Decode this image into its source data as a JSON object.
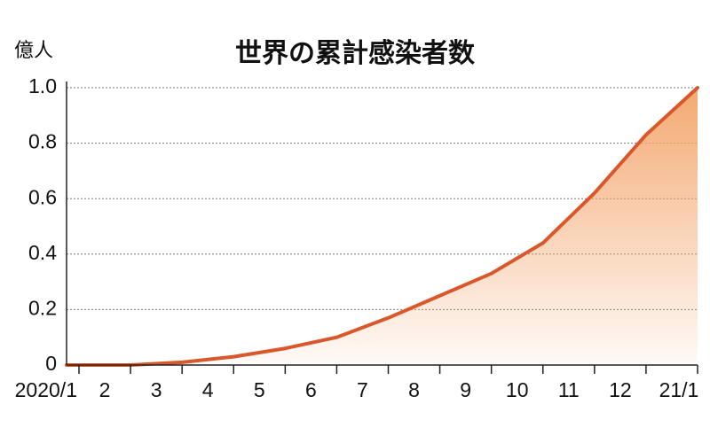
{
  "chart_data": {
    "type": "area",
    "title": "世界の累計感染者数",
    "y_unit": "億人",
    "categories": [
      "2020/1",
      "2",
      "3",
      "4",
      "5",
      "6",
      "7",
      "8",
      "9",
      "10",
      "11",
      "12",
      "21/1"
    ],
    "series": [
      {
        "name": "累計感染者数",
        "color": "#d9572b",
        "values": [
          0,
          0,
          0.01,
          0.03,
          0.06,
          0.1,
          0.17,
          0.25,
          0.33,
          0.44,
          0.62,
          0.83,
          1.0
        ]
      }
    ],
    "ylim": [
      0,
      1.0
    ],
    "yticks": [
      0,
      0.2,
      0.4,
      0.6,
      0.8,
      {
        "value": 1.0,
        "label": "1.0"
      }
    ],
    "grid": true,
    "fill_color": "#f3a46a"
  }
}
